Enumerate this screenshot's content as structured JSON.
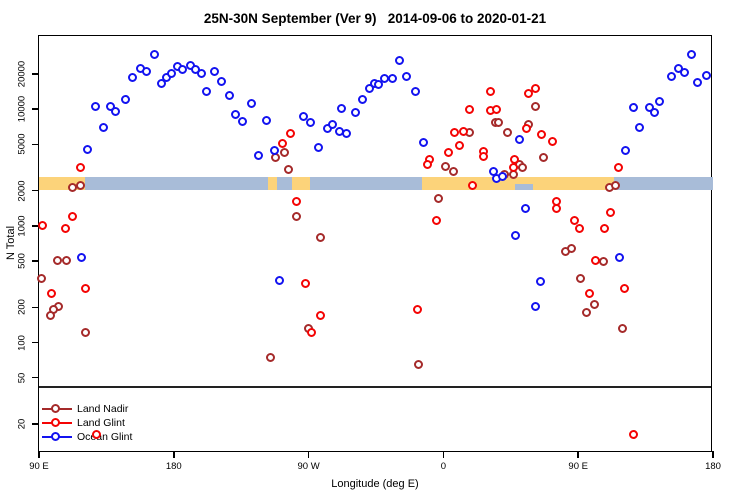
{
  "title": "25N-30N September (Ver 9)   2014-09-06 to 2020-01-21",
  "x_axis": {
    "label": "Longitude (deg E)",
    "range_deg": [
      0,
      450
    ],
    "ticks": [
      {
        "pos": 0,
        "label": "90 E"
      },
      {
        "pos": 90,
        "label": "180"
      },
      {
        "pos": 180,
        "label": "90 W"
      },
      {
        "pos": 270,
        "label": "0"
      },
      {
        "pos": 360,
        "label": "90 E"
      },
      {
        "pos": 450,
        "label": "180"
      }
    ]
  },
  "y_axis": {
    "label": "N Total",
    "scale": "log",
    "ticks": [
      20000,
      10000,
      5000,
      2000,
      1000,
      500,
      200,
      100,
      50,
      20
    ],
    "range": [
      11,
      42000
    ]
  },
  "surface_band": {
    "description": "land vs ocean surface type along longitude",
    "value_range": [
      2000,
      2600
    ],
    "colors": {
      "land": "#fcd37a",
      "ocean": "#a8bcd8"
    },
    "segments": [
      {
        "from": 0,
        "to": 31,
        "type": "land"
      },
      {
        "from": 31,
        "to": 153,
        "type": "ocean"
      },
      {
        "from": 153,
        "to": 159,
        "type": "land"
      },
      {
        "from": 159,
        "to": 169,
        "type": "ocean"
      },
      {
        "from": 169,
        "to": 181,
        "type": "land"
      },
      {
        "from": 181,
        "to": 256,
        "type": "ocean"
      },
      {
        "from": 256,
        "to": 384,
        "type": "land"
      },
      {
        "from": 318,
        "to": 330,
        "type": "ocean",
        "partial": true
      },
      {
        "from": 384,
        "to": 450,
        "type": "ocean"
      }
    ]
  },
  "legend": {
    "position": "bottom-left",
    "items": [
      {
        "label": "Land Nadir",
        "color": "#a52a2a"
      },
      {
        "label": "Land Glint",
        "color": "#f40404"
      },
      {
        "label": "Ocean Glint",
        "color": "#1313f0"
      }
    ]
  },
  "chart_data": {
    "type": "scatter",
    "title": "25N-30N September (Ver 9)   2014-09-06 to 2020-01-21",
    "xlabel": "Longitude (deg E)",
    "ylabel": "N Total",
    "x_unit": "degrees along axis measured from 90E (axis wraps: 90E, 180, 90W, 0, 90E, 180)",
    "xlim": [
      0,
      450
    ],
    "ylim_log": [
      11,
      42000
    ],
    "grid": false,
    "series": [
      {
        "name": "Land Nadir",
        "color": "#a52a2a",
        "points": [
          [
            22.7,
            2100
          ],
          [
            28,
            2200
          ],
          [
            164,
            4200
          ],
          [
            158,
            3800
          ],
          [
            167,
            3000
          ],
          [
            172,
            1200
          ],
          [
            188,
            790
          ],
          [
            305,
            7600
          ],
          [
            307,
            7600
          ],
          [
            327,
            7300
          ],
          [
            332,
            10400
          ],
          [
            313,
            6200
          ],
          [
            288,
            6200
          ],
          [
            272,
            3200
          ],
          [
            277,
            2900
          ],
          [
            317,
            2700
          ],
          [
            321,
            3300
          ],
          [
            337,
            3800
          ],
          [
            323,
            3100
          ],
          [
            311,
            2700
          ],
          [
            267,
            1700
          ],
          [
            381,
            2100
          ],
          [
            385,
            2200
          ],
          [
            12.7,
            500
          ],
          [
            18.7,
            500
          ],
          [
            2,
            350
          ],
          [
            13.4,
            200
          ],
          [
            10,
            190
          ],
          [
            8,
            170
          ],
          [
            31.4,
            120
          ],
          [
            180,
            130
          ],
          [
            155,
            74
          ],
          [
            254,
            64
          ],
          [
            352,
            600
          ],
          [
            356,
            630
          ],
          [
            377,
            490
          ],
          [
            362,
            350
          ],
          [
            371,
            210
          ],
          [
            366,
            180
          ],
          [
            390,
            130
          ]
        ]
      },
      {
        "name": "Land Glint",
        "color": "#f40404",
        "points": [
          [
            28,
            3100
          ],
          [
            22.7,
            1200
          ],
          [
            18,
            940
          ],
          [
            2.7,
            1000
          ],
          [
            168,
            6100
          ],
          [
            163,
            5000
          ],
          [
            172,
            1600
          ],
          [
            288,
            9800
          ],
          [
            302,
            14000
          ],
          [
            302,
            9600
          ],
          [
            306,
            9800
          ],
          [
            327,
            13500
          ],
          [
            332,
            15000
          ],
          [
            326,
            6800
          ],
          [
            336,
            6000
          ],
          [
            343,
            5200
          ],
          [
            318,
            3700
          ],
          [
            317,
            3100
          ],
          [
            278,
            6200
          ],
          [
            284,
            6400
          ],
          [
            281,
            4800
          ],
          [
            274,
            4200
          ],
          [
            261,
            3700
          ],
          [
            260,
            3300
          ],
          [
            297,
            4300
          ],
          [
            297,
            3900
          ],
          [
            290,
            2200
          ],
          [
            266,
            1100
          ],
          [
            387,
            3100
          ],
          [
            382,
            1300
          ],
          [
            346,
            1600
          ],
          [
            346,
            1400
          ],
          [
            358,
            1100
          ],
          [
            361,
            940
          ],
          [
            378,
            940
          ],
          [
            372,
            500
          ],
          [
            368,
            260
          ],
          [
            391,
            290
          ],
          [
            8.7,
            260
          ],
          [
            31.4,
            290
          ],
          [
            178,
            320
          ],
          [
            188,
            170
          ],
          [
            182,
            120
          ],
          [
            253,
            190
          ],
          [
            38.7,
            16
          ],
          [
            397,
            16
          ]
        ]
      },
      {
        "name": "Ocean Glint",
        "color": "#1313f0",
        "points": [
          [
            77.5,
            29000
          ],
          [
            62.8,
            18500
          ],
          [
            68.1,
            22000
          ],
          [
            72.1,
            21000
          ],
          [
            82.1,
            16400
          ],
          [
            85.5,
            18500
          ],
          [
            88.8,
            20000
          ],
          [
            92.8,
            23000
          ],
          [
            96.1,
            21600
          ],
          [
            101.5,
            23400
          ],
          [
            104.8,
            21600
          ],
          [
            108.8,
            20000
          ],
          [
            112.2,
            14000
          ],
          [
            38.1,
            10400
          ],
          [
            48.1,
            10400
          ],
          [
            51.4,
            9400
          ],
          [
            58.1,
            12000
          ],
          [
            43.4,
            6900
          ],
          [
            32.7,
            4500
          ],
          [
            117.5,
            21000
          ],
          [
            122.2,
            17000
          ],
          [
            127.5,
            13000
          ],
          [
            131.5,
            8900
          ],
          [
            136.2,
            7800
          ],
          [
            142.2,
            11000
          ],
          [
            152.2,
            7900
          ],
          [
            146.9,
            4000
          ],
          [
            157.6,
            4400
          ],
          [
            176.9,
            8600
          ],
          [
            181.6,
            7600
          ],
          [
            186.9,
            4600
          ],
          [
            192.9,
            6800
          ],
          [
            196.3,
            7300
          ],
          [
            200.9,
            6400
          ],
          [
            205.6,
            6100
          ],
          [
            202.3,
            10000
          ],
          [
            211.6,
            9300
          ],
          [
            216.3,
            12000
          ],
          [
            221,
            15000
          ],
          [
            224.3,
            16400
          ],
          [
            241,
            26000
          ],
          [
            245.7,
            19000
          ],
          [
            236.3,
            18000
          ],
          [
            231,
            18100
          ],
          [
            227,
            16000
          ],
          [
            251.7,
            14000
          ],
          [
            257,
            5100
          ],
          [
            321,
            5400
          ],
          [
            304,
            2900
          ],
          [
            306,
            2500
          ],
          [
            310,
            2600
          ],
          [
            325,
            1400
          ],
          [
            318.5,
            820
          ],
          [
            436,
            29000
          ],
          [
            422.6,
            19000
          ],
          [
            427.3,
            22000
          ],
          [
            431.3,
            20400
          ],
          [
            440,
            16700
          ],
          [
            446,
            19200
          ],
          [
            414.6,
            11500
          ],
          [
            407.9,
            10200
          ],
          [
            411.3,
            9300
          ],
          [
            397.2,
            10200
          ],
          [
            401.3,
            6900
          ],
          [
            391.9,
            4400
          ],
          [
            28.7,
            530
          ],
          [
            160.9,
            340
          ],
          [
            335.2,
            330
          ],
          [
            331.8,
            200
          ],
          [
            387.9,
            530
          ]
        ]
      }
    ]
  }
}
